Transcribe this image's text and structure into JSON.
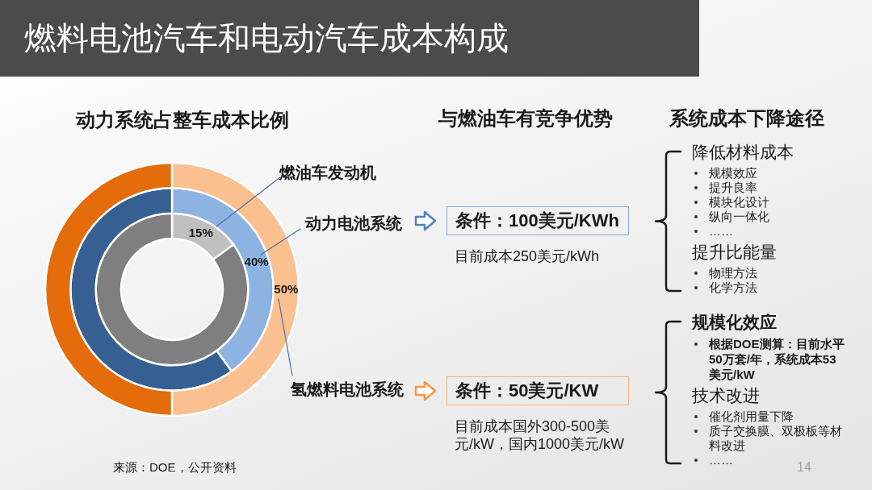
{
  "chart_data": [
    {
      "type": "donut",
      "title": "燃料电池汽车和电动汽车成本构成",
      "subtitle": "动力系统占整车成本比例",
      "categories": [
        null,
        null
      ],
      "series": [
        {
          "name": "燃油车发动机",
          "values": [
            15,
            85
          ],
          "colors": [
            "#bfbfbf",
            "#7f7f7f"
          ],
          "value_labels": [
            "15%",
            null
          ]
        },
        {
          "name": "动力电池系统",
          "values": [
            40,
            60
          ],
          "colors": [
            "#8db3e2",
            "#366092"
          ],
          "value_labels": [
            "40%",
            null
          ]
        },
        {
          "name": "氢燃料电池系统",
          "values": [
            50,
            50
          ],
          "colors": [
            "#fac090",
            "#e46c0a"
          ],
          "value_labels": [
            "50%",
            null
          ]
        }
      ],
      "annotations": [
        "来源：DOE，公开资料"
      ]
    },
    {
      "type": "other",
      "title": "与燃油车有竞争优势",
      "annotations": [
        "条件：100美元/KWh",
        "目前成本250美元/kWh",
        "条件：50美元/KW",
        "目前成本国外300-500美元/kW，国内1000美元/kW"
      ]
    },
    {
      "type": "other",
      "title": "系统成本下降途径",
      "annotations": [
        "降低材料成本",
        "规模效应",
        "提升良率",
        "模块化设计",
        "纵向一体化",
        "……",
        "提升比能量",
        "物理方法",
        "化学方法",
        "规模化效应",
        "根据DOE测算：目前水平50万套/年，系统成本53美元/kW",
        "技术改进",
        "催化剂用量下降",
        "质子交换膜、双极板等材料改进",
        "……",
        "14"
      ]
    }
  ]
}
